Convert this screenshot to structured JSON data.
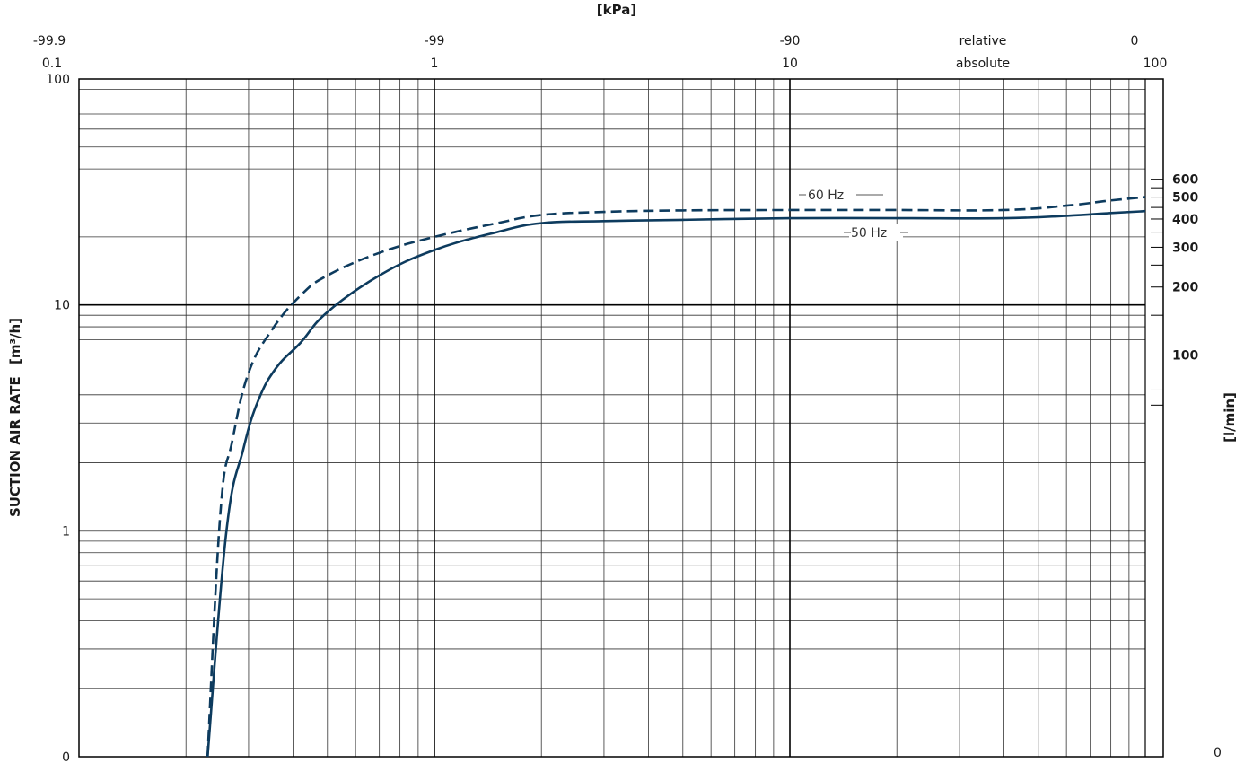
{
  "chart_data": {
    "type": "line",
    "x_scale": "log",
    "y_scale": "log",
    "xlim": [
      0.1,
      100
    ],
    "ylim": [
      0.1,
      100
    ],
    "grid": true,
    "top_axis_title": "[kPa]",
    "left_axis_title": "SUCTION AIR RATE",
    "left_axis_unit": "[m³/h]",
    "right_axis_title": "[l/min]",
    "top_ticks_relative": [
      {
        "x": 0.1,
        "label": "-99.9"
      },
      {
        "x": 1,
        "label": "-99"
      },
      {
        "x": 10,
        "label": "-90"
      },
      {
        "x": 100,
        "label": "0"
      }
    ],
    "top_ticks_absolute": [
      {
        "x": 0.1,
        "label": "0.1"
      },
      {
        "x": 1,
        "label": "1"
      },
      {
        "x": 10,
        "label": "10"
      },
      {
        "x": 100,
        "label": "100"
      }
    ],
    "top_scale_names": {
      "relative": "relative",
      "absolute": "absolute"
    },
    "left_ticks": [
      {
        "y": 100,
        "label": "100"
      },
      {
        "y": 10,
        "label": "10"
      },
      {
        "y": 1,
        "label": "1"
      },
      {
        "y": 0.1,
        "label": "0"
      }
    ],
    "right_ticks_labeled": [
      {
        "lmin": 600,
        "label": "600"
      },
      {
        "lmin": 500,
        "label": "500"
      },
      {
        "lmin": 400,
        "label": "400"
      },
      {
        "lmin": 300,
        "label": "300"
      },
      {
        "lmin": 200,
        "label": "200"
      },
      {
        "lmin": 100,
        "label": "100"
      }
    ],
    "right_bottom_label": "0",
    "series": [
      {
        "name": "60 Hz",
        "style": "dashed",
        "color": "#0d3b5e",
        "points": [
          [
            0.23,
            0.1
          ],
          [
            0.25,
            1.2
          ],
          [
            0.27,
            2.5
          ],
          [
            0.3,
            5.0
          ],
          [
            0.35,
            7.8
          ],
          [
            0.42,
            11.0
          ],
          [
            0.5,
            13.5
          ],
          [
            0.7,
            17.0
          ],
          [
            1.0,
            20.0
          ],
          [
            1.5,
            23.0
          ],
          [
            2.0,
            25.0
          ],
          [
            3.0,
            25.8
          ],
          [
            5.0,
            26.2
          ],
          [
            10.0,
            26.3
          ],
          [
            20.0,
            26.3
          ],
          [
            40.0,
            26.3
          ],
          [
            60.0,
            27.5
          ],
          [
            80.0,
            29.0
          ],
          [
            100.0,
            30.0
          ]
        ]
      },
      {
        "name": "50 Hz",
        "style": "solid",
        "color": "#0d3b5e",
        "points": [
          [
            0.23,
            0.1
          ],
          [
            0.26,
            1.0
          ],
          [
            0.29,
            2.3
          ],
          [
            0.32,
            3.8
          ],
          [
            0.36,
            5.3
          ],
          [
            0.42,
            6.8
          ],
          [
            0.5,
            9.3
          ],
          [
            0.7,
            13.5
          ],
          [
            1.0,
            17.5
          ],
          [
            1.5,
            21.0
          ],
          [
            2.0,
            23.0
          ],
          [
            3.0,
            23.5
          ],
          [
            5.0,
            23.8
          ],
          [
            10.0,
            24.2
          ],
          [
            20.0,
            24.2
          ],
          [
            40.0,
            24.2
          ],
          [
            60.0,
            24.8
          ],
          [
            80.0,
            25.5
          ],
          [
            100.0,
            26.0
          ]
        ]
      }
    ]
  }
}
